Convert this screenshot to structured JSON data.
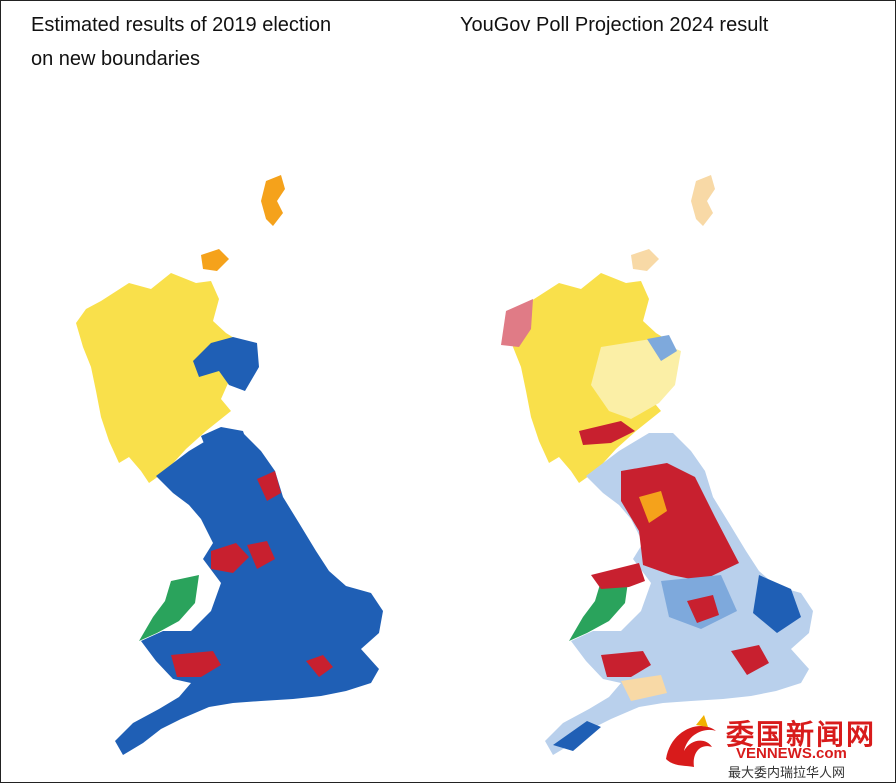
{
  "titles": {
    "left_line1": "Estimated results of 2019 election",
    "left_line2": "on new boundaries",
    "right": "YouGov Poll Projection 2024 result"
  },
  "watermark": {
    "main": "委国新闻网",
    "sub": "VENNEWS.com",
    "tagline": "最大委内瑞拉华人网"
  },
  "colors": {
    "conservative": "#1f5fb5",
    "conservative_lean": "#7ea9dc",
    "conservative_light": "#b9d0ec",
    "labour": "#c8202f",
    "labour_lean": "#e07b86",
    "labour_light": "#f0b3b9",
    "snp": "#f9e04b",
    "snp_light": "#fbefa6",
    "libdem": "#f5a21b",
    "libdem_light": "#f8d9a6",
    "plaid": "#2aa35c"
  },
  "chart_data": [
    {
      "type": "other",
      "title": "Estimated results of 2019 election on new boundaries",
      "note": "Choropleth map of Great Britain constituencies"
    },
    {
      "type": "other",
      "title": "YouGov Poll Projection 2024 result",
      "note": "Choropleth map of Great Britain constituencies"
    }
  ]
}
